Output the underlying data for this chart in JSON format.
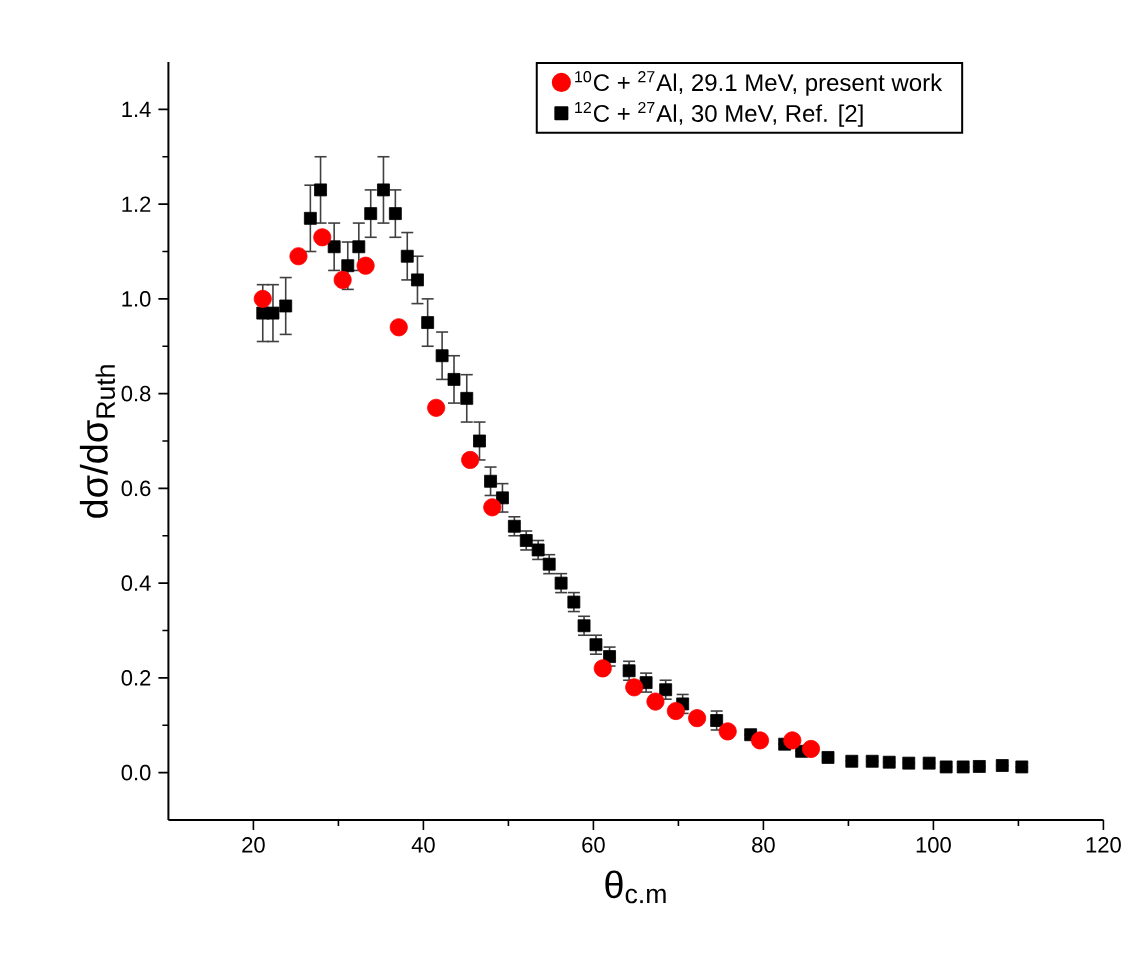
{
  "chart_data": {
    "type": "scatter",
    "xlabel": "θ$_{c.m}$",
    "ylabel": "dσ/dσ$_{Ruth}$",
    "xlim": [
      10,
      120
    ],
    "xticks": [
      20,
      40,
      60,
      80,
      100,
      120
    ],
    "ylim": [
      -0.1,
      1.5
    ],
    "yticks": [
      {
        "value": 0.0,
        "label": "0.0"
      },
      {
        "value": 0.2,
        "label": "0.2"
      },
      {
        "value": 0.4,
        "label": "0.4"
      },
      {
        "value": 0.6,
        "label": "0.6"
      },
      {
        "value": 0.8,
        "label": "0.8"
      },
      {
        "value": 1.0,
        "label": "1.0"
      },
      {
        "value": 1.2,
        "label": "1.2"
      },
      {
        "value": 1.4,
        "label": "1.4"
      }
    ],
    "legend": "top right",
    "grid": false,
    "series": [
      {
        "name": "$^{10}$C + $^{27}$Al, 29.1 MeV, present work",
        "color": "#ff0000",
        "marker": "circle",
        "x": [
          21.1,
          25.3,
          28.1,
          30.5,
          33.2,
          37.1,
          41.5,
          45.5,
          48.1,
          61.1,
          64.8,
          67.3,
          69.7,
          72.2,
          75.8,
          79.6,
          83.4,
          85.6
        ],
        "values": [
          1.0,
          1.09,
          1.13,
          1.04,
          1.07,
          0.94,
          0.77,
          0.66,
          0.56,
          0.22,
          0.18,
          0.15,
          0.13,
          0.115,
          0.087,
          0.068,
          0.068,
          0.05
        ]
      },
      {
        "name": "$^{12}$C + $^{27}$Al, 30 MeV, Ref. [2]",
        "color": "#000000",
        "marker": "square",
        "x": [
          21.1,
          22.3,
          23.8,
          26.7,
          27.9,
          29.5,
          31.1,
          32.4,
          33.8,
          35.3,
          36.7,
          38.1,
          39.3,
          40.5,
          42.2,
          43.6,
          45.1,
          46.6,
          47.9,
          49.3,
          50.7,
          52.1,
          53.5,
          54.8,
          56.2,
          57.7,
          58.9,
          60.3,
          61.9,
          64.2,
          66.2,
          68.5,
          70.5,
          72.5,
          74.5,
          76.5,
          78.5,
          80.5,
          82.5,
          84.5,
          87.6,
          90.4,
          92.8,
          94.8,
          97.1,
          99.5,
          101.5,
          103.5,
          105.4,
          108.1,
          110.4
        ],
        "values": [
          0.97,
          0.97,
          0.985,
          1.17,
          1.23,
          1.11,
          1.07,
          1.11,
          1.18,
          1.23,
          1.18,
          1.09,
          1.04,
          0.95,
          0.88,
          0.83,
          0.79,
          0.7,
          0.615,
          0.58,
          0.52,
          0.49,
          0.47,
          0.44,
          0.4,
          0.36,
          0.31,
          0.27,
          0.245,
          0.215,
          0.19,
          0.175,
          0.145,
          null,
          0.11,
          null,
          0.08,
          null,
          0.06,
          0.045,
          0.032,
          0.024,
          0.024,
          0.022,
          0.02,
          0.02,
          0.012,
          0.012,
          0.013,
          0.015,
          0.012
        ],
        "errors": [
          0.06,
          0.06,
          0.06,
          0.07,
          0.07,
          0.05,
          0.05,
          0.05,
          0.05,
          0.07,
          0.05,
          0.05,
          0.05,
          0.05,
          0.05,
          0.05,
          0.05,
          0.04,
          0.03,
          0.03,
          0.02,
          0.02,
          0.02,
          0.02,
          0.02,
          0.02,
          0.02,
          0.02,
          0.02,
          0.02,
          0.02,
          0.02,
          0.02,
          null,
          0.02,
          null,
          null,
          null,
          null,
          null,
          null,
          null,
          null,
          null,
          null,
          null,
          null,
          null,
          null,
          null,
          null
        ]
      }
    ]
  }
}
